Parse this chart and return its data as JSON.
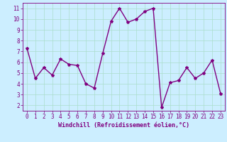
{
  "x": [
    0,
    1,
    2,
    3,
    4,
    5,
    6,
    7,
    8,
    9,
    10,
    11,
    12,
    13,
    14,
    15,
    16,
    17,
    18,
    19,
    20,
    21,
    22,
    23
  ],
  "y": [
    7.3,
    4.5,
    5.5,
    4.8,
    6.3,
    5.8,
    5.7,
    4.0,
    3.6,
    6.8,
    9.8,
    11.0,
    9.7,
    10.0,
    10.7,
    11.0,
    1.8,
    4.1,
    4.3,
    5.5,
    4.5,
    5.0,
    6.2,
    3.1
  ],
  "line_color": "#800080",
  "marker": "*",
  "marker_size": 3,
  "linewidth": 1.0,
  "xlabel": "Windchill (Refroidissement éolien,°C)",
  "background_color": "#cceeff",
  "grid_color": "#aaddcc",
  "ylim": [
    1.5,
    11.5
  ],
  "xlim": [
    -0.5,
    23.5
  ],
  "yticks": [
    2,
    3,
    4,
    5,
    6,
    7,
    8,
    9,
    10,
    11
  ],
  "xticks": [
    0,
    1,
    2,
    3,
    4,
    5,
    6,
    7,
    8,
    9,
    10,
    11,
    12,
    13,
    14,
    15,
    16,
    17,
    18,
    19,
    20,
    21,
    22,
    23
  ],
  "color": "#800080",
  "tick_fontsize": 5.5,
  "xlabel_fontsize": 6.0
}
